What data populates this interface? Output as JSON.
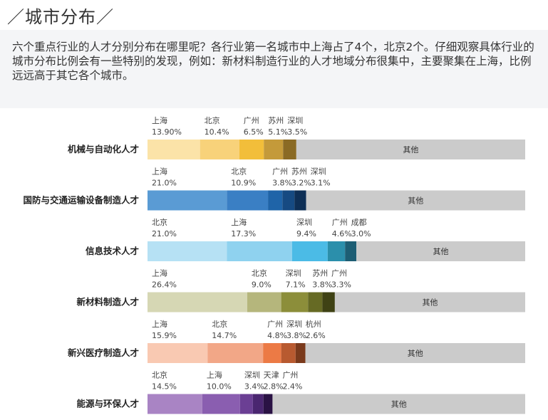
{
  "header": {
    "title": "／城市分布／"
  },
  "intro": {
    "text": "六个重点行业的人才分别分布在哪里呢？各行业第一名城市中上海占了4个，北京2个。仔细观察具体行业的城市分布比例会有一些特别的发现，例如：新材料制造行业的人才地域分布很集中，主要聚集在上海，比例远远高于其它各个城市。"
  },
  "chart_data": {
    "type": "bar",
    "orientation": "horizontal-stacked",
    "other_label": "其他",
    "rows": [
      {
        "category": "机械与自动化人才",
        "segments": [
          {
            "city": "上海",
            "label": "13.90%",
            "value": 13.9,
            "color": "#fbe3a8"
          },
          {
            "city": "北京",
            "label": "10.4%",
            "value": 10.4,
            "color": "#f8d27a"
          },
          {
            "city": "广州",
            "label": "6.5%",
            "value": 6.5,
            "color": "#f2be3a"
          },
          {
            "city": "苏州",
            "label": "5.1%",
            "value": 5.1,
            "color": "#c49a3a"
          },
          {
            "city": "深圳",
            "label": "3.5%",
            "value": 3.5,
            "color": "#8a6a24"
          }
        ]
      },
      {
        "category": "国防与交通运输设备制造人才",
        "segments": [
          {
            "city": "上海",
            "label": "21.0%",
            "value": 21.0,
            "color": "#5a9bd4"
          },
          {
            "city": "北京",
            "label": "10.9%",
            "value": 10.9,
            "color": "#3a7fc4"
          },
          {
            "city": "广州",
            "label": "3.8%",
            "value": 3.8,
            "color": "#1f64a8"
          },
          {
            "city": "苏州",
            "label": "3.2%",
            "value": 3.2,
            "color": "#164a82"
          },
          {
            "city": "深圳",
            "label": "3.1%",
            "value": 3.1,
            "color": "#0e2f56"
          }
        ]
      },
      {
        "category": "信息技术人才",
        "segments": [
          {
            "city": "北京",
            "label": "21.0%",
            "value": 21.0,
            "color": "#b6e1f4"
          },
          {
            "city": "上海",
            "label": "17.3%",
            "value": 17.3,
            "color": "#8fd2ef"
          },
          {
            "city": "深圳",
            "label": "9.4%",
            "value": 9.4,
            "color": "#4bbbe6"
          },
          {
            "city": "广州",
            "label": "4.6%",
            "value": 4.6,
            "color": "#2b8fab"
          },
          {
            "city": "成都",
            "label": "3.0%",
            "value": 3.0,
            "color": "#1d5e74"
          }
        ]
      },
      {
        "category": "新材料制造人才",
        "segments": [
          {
            "city": "上海",
            "label": "26.4%",
            "value": 26.4,
            "color": "#d6d7b4"
          },
          {
            "city": "北京",
            "label": "9.0%",
            "value": 9.0,
            "color": "#b5b67c"
          },
          {
            "city": "深圳",
            "label": "7.1%",
            "value": 7.1,
            "color": "#8c8e3a"
          },
          {
            "city": "苏州",
            "label": "3.8%",
            "value": 3.8,
            "color": "#666a24"
          },
          {
            "city": "广州",
            "label": "3.3%",
            "value": 3.3,
            "color": "#3f4214"
          }
        ]
      },
      {
        "category": "新兴医疗制造人才",
        "segments": [
          {
            "city": "上海",
            "label": "15.9%",
            "value": 15.9,
            "color": "#f9c9b2"
          },
          {
            "city": "北京",
            "label": "14.7%",
            "value": 14.7,
            "color": "#f2a787"
          },
          {
            "city": "广州",
            "label": "4.8%",
            "value": 4.8,
            "color": "#ec7a45"
          },
          {
            "city": "深圳",
            "label": "3.8%",
            "value": 3.8,
            "color": "#b85a30"
          },
          {
            "city": "杭州",
            "label": "2.6%",
            "value": 2.6,
            "color": "#7a3a1c"
          }
        ]
      },
      {
        "category": "能源与环保人才",
        "segments": [
          {
            "city": "北京",
            "label": "14.5%",
            "value": 14.5,
            "color": "#a984c4"
          },
          {
            "city": "上海",
            "label": "10.0%",
            "value": 10.0,
            "color": "#8a5eb0"
          },
          {
            "city": "深圳",
            "label": "3.4%",
            "value": 3.4,
            "color": "#6b3f94"
          },
          {
            "city": "天津",
            "label": "2.8%",
            "value": 2.8,
            "color": "#4a2670"
          },
          {
            "city": "广州",
            "label": "2.4%",
            "value": 2.4,
            "color": "#2a1244"
          }
        ]
      }
    ],
    "xlim": [
      0,
      100
    ],
    "other_color": "#cbcbcb"
  }
}
